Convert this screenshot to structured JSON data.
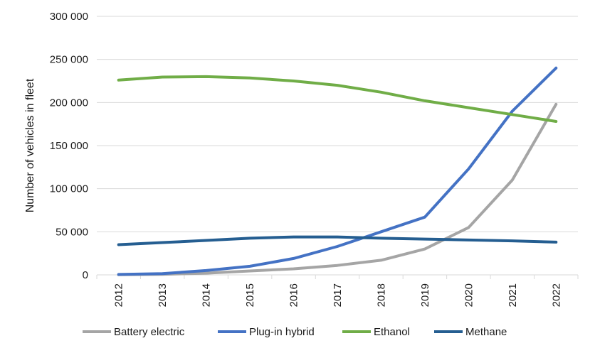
{
  "chart_data": {
    "type": "line",
    "title": "",
    "xlabel": "",
    "ylabel": "Number of vehicles in fleet",
    "x": [
      "2012",
      "2013",
      "2014",
      "2015",
      "2016",
      "2017",
      "2018",
      "2019",
      "2020",
      "2021",
      "2022"
    ],
    "ylim": [
      0,
      300000
    ],
    "yticks": [
      0,
      50000,
      100000,
      150000,
      200000,
      250000,
      300000
    ],
    "ytick_labels": [
      "0",
      "50 000",
      "100 000",
      "150 000",
      "200 000",
      "250 000",
      "300 000"
    ],
    "grid": true,
    "legend_position": "bottom",
    "series": [
      {
        "name": "Battery electric",
        "color": "#a5a5a5",
        "values": [
          200,
          700,
          2000,
          4500,
          7000,
          11000,
          17000,
          30000,
          55000,
          110000,
          198000
        ]
      },
      {
        "name": "Plug-in hybrid",
        "color": "#4472c4",
        "values": [
          500,
          1500,
          5000,
          10000,
          19000,
          33000,
          50000,
          67000,
          123000,
          190000,
          240000
        ]
      },
      {
        "name": "Ethanol",
        "color": "#70ad47",
        "values": [
          226000,
          229500,
          230000,
          228500,
          225000,
          220000,
          212000,
          202000,
          194000,
          186000,
          178000
        ]
      },
      {
        "name": "Methane",
        "color": "#255e91",
        "values": [
          35000,
          37500,
          40000,
          42500,
          44000,
          44000,
          42500,
          41500,
          40500,
          39500,
          38000
        ]
      }
    ]
  }
}
